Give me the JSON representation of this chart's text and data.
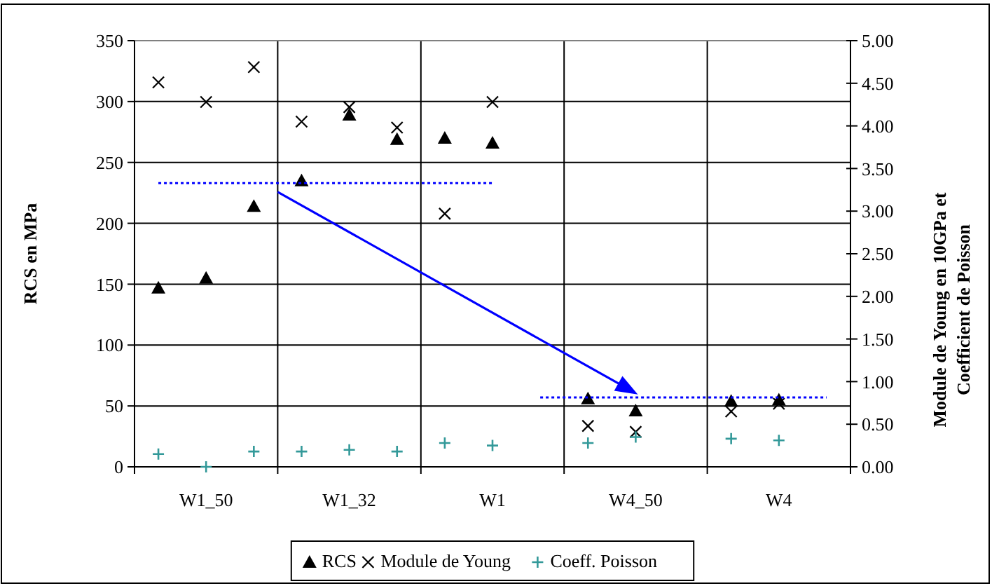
{
  "chart_data": {
    "type": "scatter",
    "ylabel": "RCS en  MPa",
    "y2label": "Module de Young en 10GPa et Coefficient de Poisson",
    "categories": [
      null,
      "W1_50",
      null,
      null,
      "W1_32",
      null,
      null,
      "W1",
      null,
      null,
      "W4_50",
      null,
      null,
      "W4",
      null
    ],
    "ylim": [
      0,
      350
    ],
    "yticks": [
      0,
      50,
      100,
      150,
      200,
      250,
      300,
      350
    ],
    "y2lim": [
      0,
      5
    ],
    "y2ticks": [
      {
        "value": 0,
        "label": "0.00"
      },
      {
        "value": 0.5,
        "label": "0.50"
      },
      {
        "value": 1,
        "label": "1.00"
      },
      {
        "value": 1.5,
        "label": "1.50"
      },
      {
        "value": 2,
        "label": "2.00"
      },
      {
        "value": 2.5,
        "label": "2.50"
      },
      {
        "value": 3,
        "label": "3.00"
      },
      {
        "value": 3.5,
        "label": "3.50"
      },
      {
        "value": 4,
        "label": "4.00"
      },
      {
        "value": 4.5,
        "label": "4.50"
      },
      {
        "value": 5,
        "label": "5.00"
      }
    ],
    "grid": true,
    "legend": "bottom",
    "series": [
      {
        "name": "RCS",
        "color": "#000000",
        "marker": "triangle",
        "values": [
          147,
          155,
          214,
          235,
          289,
          269,
          270,
          266,
          null,
          56,
          46,
          null,
          54,
          55,
          null
        ]
      },
      {
        "name": "Module de Young",
        "color": "#000000",
        "marker": "x",
        "axis": "y2",
        "values": [
          4.51,
          4.28,
          4.69,
          4.05,
          4.22,
          3.98,
          2.97,
          4.28,
          null,
          0.48,
          0.41,
          null,
          0.65,
          0.74,
          null
        ]
      },
      {
        "name": "Coeff. Poisson",
        "color": "#339999",
        "marker": "cross",
        "axis": "y2",
        "values": [
          0.15,
          0.0,
          0.18,
          0.18,
          0.2,
          0.18,
          0.28,
          0.25,
          null,
          0.28,
          0.35,
          null,
          0.33,
          0.31,
          null
        ]
      },
      {
        "type": "line",
        "color": "#0000ff",
        "line_style": "dotted",
        "marker": "none",
        "values": [
          233,
          233,
          233,
          233,
          233,
          233,
          233,
          233,
          null,
          null,
          null,
          null,
          null,
          null,
          null
        ]
      },
      {
        "type": "line",
        "color": "#0000ff",
        "line_style": "dotted",
        "marker": "none",
        "values": [
          null,
          null,
          null,
          null,
          null,
          null,
          null,
          null,
          57,
          57,
          57,
          57,
          57,
          57,
          57
        ]
      }
    ]
  }
}
